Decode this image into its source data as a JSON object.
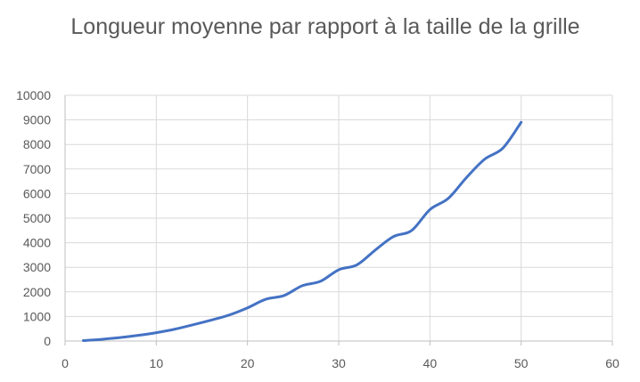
{
  "chart_data": {
    "type": "line",
    "title": "Longueur moyenne par rapport à la taille de la grille",
    "xlabel": "",
    "ylabel": "",
    "xlim": [
      0,
      60
    ],
    "ylim": [
      0,
      10000
    ],
    "x_ticks": [
      0,
      10,
      20,
      30,
      40,
      50,
      60
    ],
    "y_ticks": [
      0,
      1000,
      2000,
      3000,
      4000,
      5000,
      6000,
      7000,
      8000,
      9000,
      10000
    ],
    "grid": true,
    "legend": "none",
    "series": [
      {
        "color": "#4472C4",
        "x": [
          2,
          4,
          6,
          8,
          10,
          12,
          14,
          16,
          18,
          20,
          22,
          24,
          26,
          28,
          30,
          32,
          34,
          36,
          38,
          40,
          42,
          44,
          46,
          48,
          50
        ],
        "y": [
          20,
          70,
          140,
          230,
          340,
          480,
          660,
          850,
          1060,
          1350,
          1700,
          1850,
          2250,
          2430,
          2900,
          3100,
          3700,
          4250,
          4500,
          5350,
          5800,
          6650,
          7400,
          7850,
          8900
        ]
      }
    ]
  }
}
